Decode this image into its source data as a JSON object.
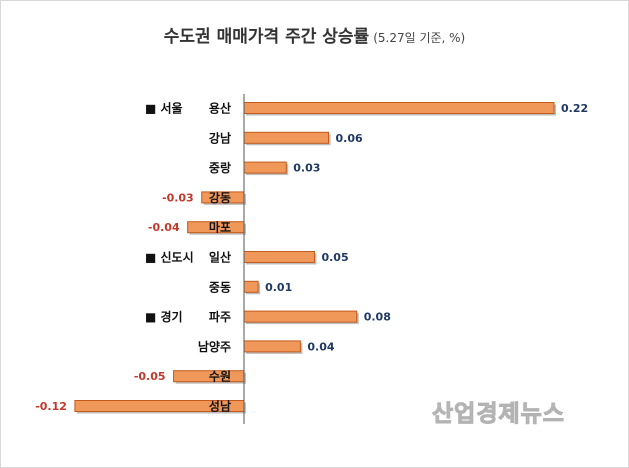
{
  "title": {
    "main": "수도권 매매가격 주간 상승률",
    "sub": "(5.27일 기준, %)"
  },
  "watermark": "산업경제뉴스",
  "colors": {
    "bar_fill": "#F0975A",
    "bar_edge": "#C45A1C",
    "positive_label": "#1F3864",
    "negative_label": "#C0392B",
    "axis": "#555555"
  },
  "chart_data": {
    "type": "bar",
    "orientation": "horizontal",
    "title": "수도권 매매가격 주간 상승률",
    "subtitle": "(5.27일 기준, %)",
    "unit": "%",
    "xlim": [
      -0.12,
      0.22
    ],
    "grid": false,
    "categories": [
      "용산",
      "강남",
      "중랑",
      "강동",
      "마포",
      "일산",
      "중동",
      "파주",
      "남양주",
      "수원",
      "성남"
    ],
    "values": [
      0.22,
      0.06,
      0.03,
      -0.03,
      -0.04,
      0.05,
      0.01,
      0.08,
      0.04,
      -0.05,
      -0.12
    ],
    "value_labels": [
      "0.22",
      "0.06",
      "0.03",
      "-0.03",
      "-0.04",
      "0.05",
      "0.01",
      "0.08",
      "0.04",
      "-0.05",
      "-0.12"
    ],
    "groups": [
      {
        "label": "■ 서울",
        "start_index": 0
      },
      {
        "label": "■ 신도시",
        "start_index": 5
      },
      {
        "label": "■ 경기",
        "start_index": 7
      }
    ]
  }
}
